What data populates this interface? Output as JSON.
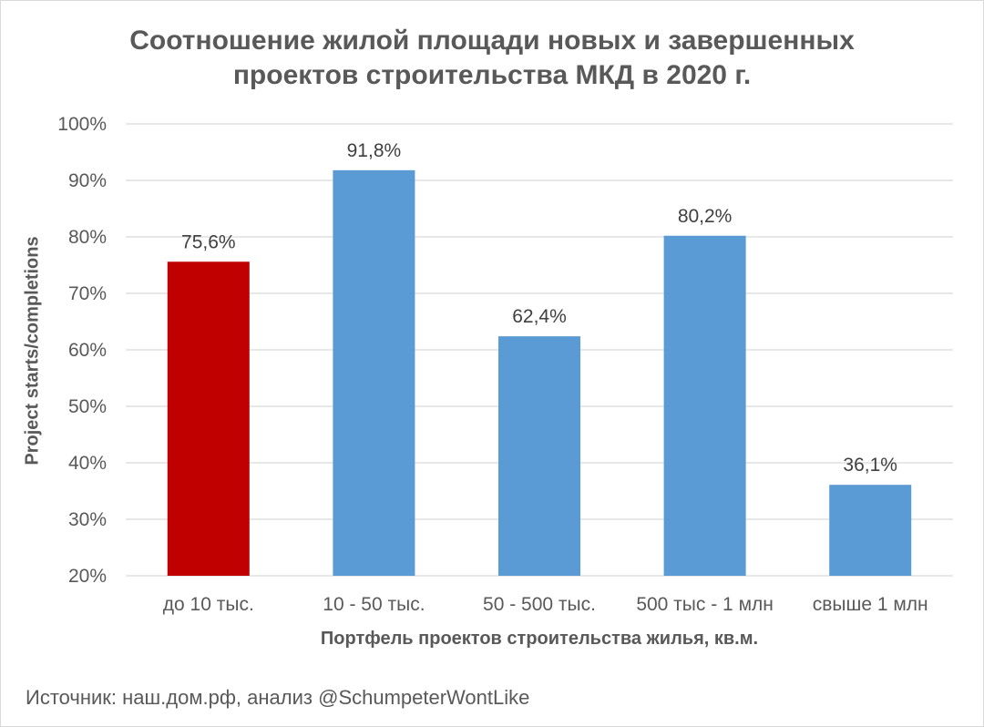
{
  "chart_data": {
    "type": "bar",
    "title_line1": "Соотношение жилой площади новых и завершенных",
    "title_line2": "проектов строительства МКД в 2020 г.",
    "xlabel": "Портфель проектов строительства жилья, кв.м.",
    "ylabel": "Project starts/completions",
    "ylim": [
      20,
      100
    ],
    "yticks": [
      20,
      30,
      40,
      50,
      60,
      70,
      80,
      90,
      100
    ],
    "ytick_labels": [
      "20%",
      "30%",
      "40%",
      "50%",
      "60%",
      "70%",
      "80%",
      "90%",
      "100%"
    ],
    "categories": [
      "до 10 тыс.",
      "10 - 50 тыс.",
      "50 - 500 тыс.",
      "500 тыс - 1 млн",
      "свыше 1 млн"
    ],
    "values": [
      75.6,
      91.8,
      62.4,
      80.2,
      36.1
    ],
    "data_labels": [
      "75,6%",
      "91,8%",
      "62,4%",
      "80,2%",
      "36,1%"
    ],
    "bar_colors": [
      "#c00000",
      "#5b9bd5",
      "#5b9bd5",
      "#5b9bd5",
      "#5b9bd5"
    ],
    "grid": true,
    "legend": "none"
  },
  "source": "Источник: наш.дом.рф, анализ @SchumpeterWontLike"
}
